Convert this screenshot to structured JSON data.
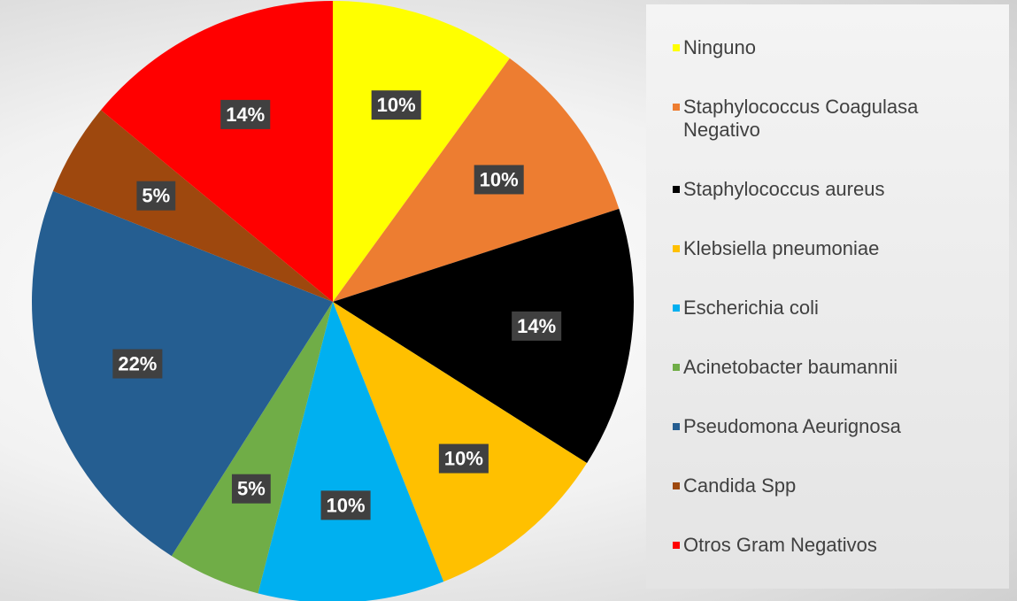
{
  "chart_data": {
    "type": "pie",
    "categories": [
      "Ninguno",
      "Staphylococcus Coagulasa Negativo",
      "Staphylococcus aureus",
      "Klebsiella pneumoniae",
      "Escherichia coli",
      "Acinetobacter baumannii",
      "Pseudomona Aeurignosa",
      "Candida Spp",
      "Otros Gram Negativos"
    ],
    "values": [
      10,
      10,
      14,
      10,
      10,
      5,
      22,
      5,
      14
    ],
    "value_labels": [
      "10%",
      "10%",
      "14%",
      "10%",
      "10%",
      "5%",
      "22%",
      "5%",
      "14%"
    ],
    "colors": [
      "#ffff00",
      "#ed7d31",
      "#000000",
      "#ffc000",
      "#00b0f0",
      "#70ad47",
      "#255e91",
      "#9e480e",
      "#ff0000"
    ],
    "legend": "right"
  }
}
